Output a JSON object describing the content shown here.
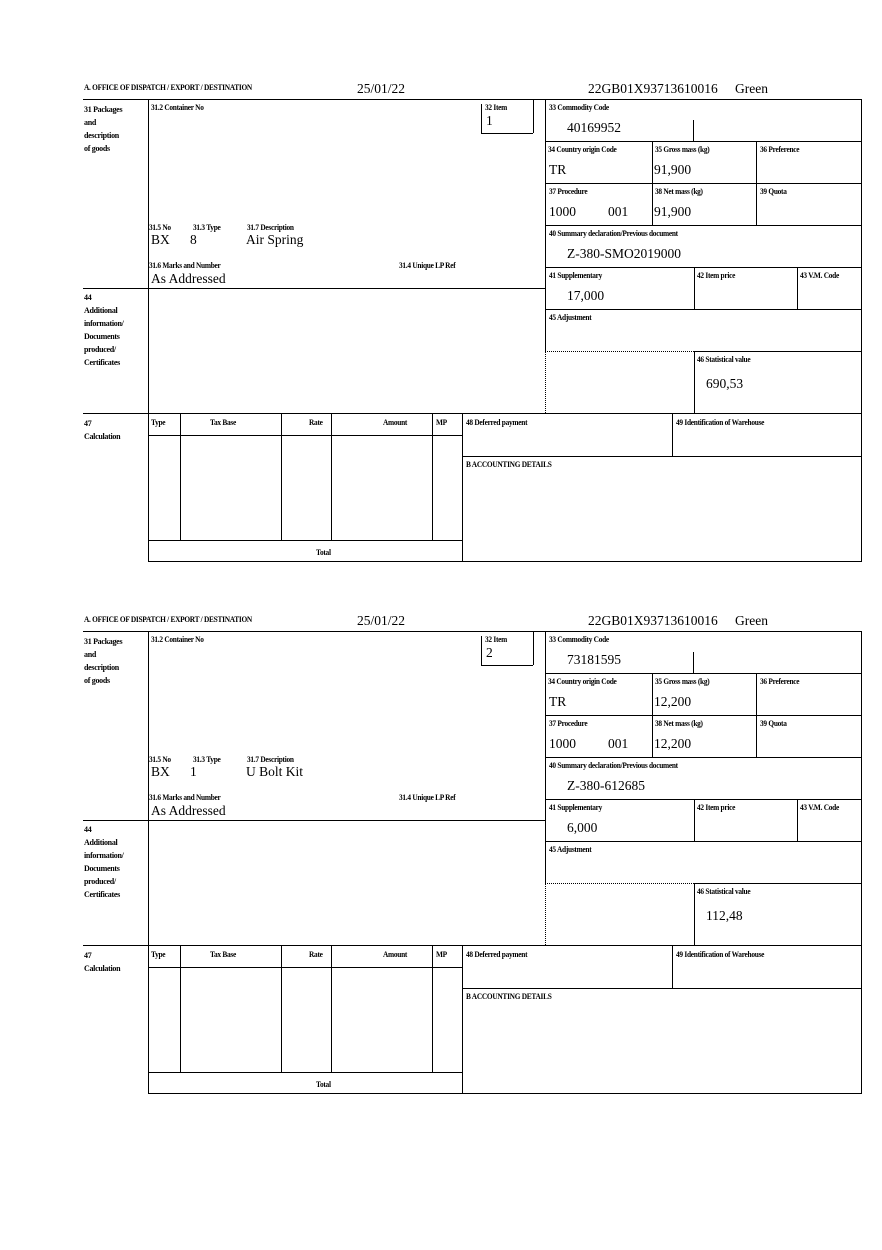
{
  "form": {
    "office_heading": "A.  OFFICE OF DISPATCH / EXPORT / DESTINATION",
    "date": "25/01/22",
    "reference": "22GB01X93713610016",
    "route": "Green",
    "labels": {
      "packages": [
        "31 Packages",
        "and",
        "description",
        "of goods"
      ],
      "container_no": "31.2 Container No",
      "item": "32 Item",
      "no": "31.5 No",
      "type": "31.3 Type",
      "description": "31.7 Description",
      "marks": "31.6 Marks and Number",
      "unique_lp_ref": "31.4 Unique LP Ref",
      "commodity_code": "33 Commodity Code",
      "country_origin": "34 Country origin Code",
      "gross_mass": "35 Gross mass (kg)",
      "preference": "36 Preference",
      "procedure": "37 Procedure",
      "net_mass": "38 Net mass (kg)",
      "quota": "39 Quota",
      "summary_declaration": "40 Summary declaration/Previous document",
      "supplementary": "41 Supplementary",
      "item_price": "42 Item price",
      "vm_code": "43 V.M. Code",
      "additional_info": [
        "44",
        "Additional",
        "information/",
        "Documents",
        "produced/",
        "Certificates"
      ],
      "adjustment": "45 Adjustment",
      "statistical_value": "46 Statistical value",
      "calculation": [
        "47",
        "Calculation"
      ],
      "calc_type": "Type",
      "calc_tax_base": "Tax Base",
      "calc_rate": "Rate",
      "calc_amount": "Amount",
      "calc_mp": "MP",
      "calc_total": "Total",
      "deferred_payment": "48 Deferred payment",
      "warehouse": "49 Identification of Warehouse",
      "accounting": "B ACCOUNTING DETAILS"
    }
  },
  "items": [
    {
      "item_no": "1",
      "pkg_no": "BX",
      "pkg_type": "8",
      "description": "Air Spring",
      "marks": "As Addressed",
      "commodity_code": "40169952",
      "country_origin": "TR",
      "gross_mass": "91,900",
      "procedure": "1000",
      "procedure_add": "001",
      "net_mass": "91,900",
      "summary_declaration": "Z-380-SMO2019000",
      "supplementary": "17,000",
      "statistical_value": "690,53"
    },
    {
      "item_no": "2",
      "pkg_no": "BX",
      "pkg_type": "1",
      "description": "U Bolt Kit",
      "marks": "As Addressed",
      "commodity_code": "73181595",
      "country_origin": "TR",
      "gross_mass": "12,200",
      "procedure": "1000",
      "procedure_add": "001",
      "net_mass": "12,200",
      "summary_declaration": "Z-380-612685",
      "supplementary": "6,000",
      "statistical_value": "112,48"
    }
  ]
}
